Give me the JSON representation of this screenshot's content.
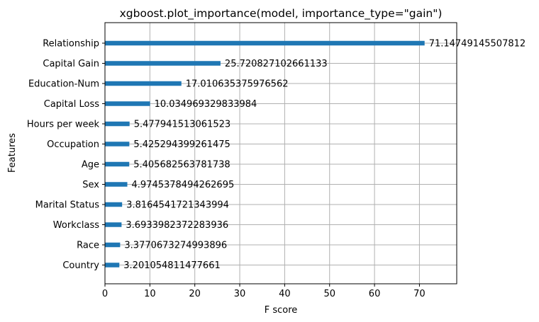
{
  "chart_data": {
    "type": "bar",
    "orientation": "horizontal",
    "title": "xgboost.plot_importance(model, importance_type=\"gain\")",
    "xlabel": "F score",
    "ylabel": "Features",
    "xlim": [
      0,
      78.3
    ],
    "xticks": [
      0,
      10,
      20,
      30,
      40,
      50,
      60,
      70
    ],
    "grid": true,
    "bar_color": "#1f77b4",
    "categories": [
      "Relationship",
      "Capital Gain",
      "Education-Num",
      "Capital Loss",
      "Hours per week",
      "Occupation",
      "Age",
      "Sex",
      "Marital Status",
      "Workclass",
      "Race",
      "Country"
    ],
    "values": [
      71.14749145507812,
      25.720827102661133,
      17.010635375976562,
      10.034969329833984,
      5.477941513061523,
      5.425294399261475,
      5.405682563781738,
      4.9745378494262695,
      3.8164541721343994,
      3.6933982372283936,
      3.3770673274993896,
      3.201054811477661
    ],
    "value_labels": [
      "71.14749145507812",
      "25.720827102661133",
      "17.010635375976562",
      "10.034969329833984",
      "5.477941513061523",
      "5.425294399261475",
      "5.405682563781738",
      "4.9745378494262695",
      "3.8164541721343994",
      "3.6933982372283936",
      "3.3770673274993896",
      "3.201054811477661"
    ]
  }
}
